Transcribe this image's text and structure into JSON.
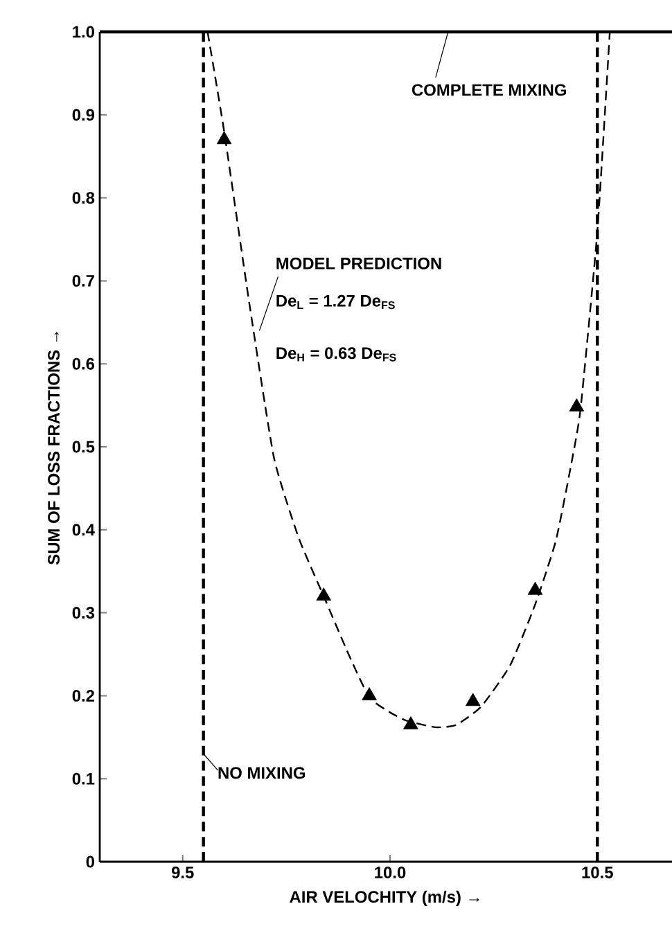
{
  "chart_data": {
    "type": "scatter",
    "xlabel": "AIR VELOCHITY (m/s) →",
    "ylabel": "SUM OF LOSS FRACTIONS →",
    "xlim": [
      9.3,
      10.68
    ],
    "ylim": [
      0,
      1.0
    ],
    "xticks": [
      9.5,
      {
        "value": 10,
        "label": "10.0"
      },
      10.5
    ],
    "yticks": [
      0,
      0.1,
      0.2,
      0.3,
      0.4,
      0.5,
      0.6,
      0.7,
      0.8,
      0.9,
      {
        "value": 1,
        "label": "1.0"
      }
    ],
    "grid": false,
    "series": [
      {
        "color": "#000000",
        "marker": "triangle",
        "x": [
          9.6,
          9.84,
          9.95,
          10.05,
          10.2,
          10.35,
          10.45
        ],
        "values": [
          0.87,
          0.32,
          0.2,
          0.165,
          0.193,
          0.327,
          0.548
        ]
      },
      {
        "type": "line",
        "color": "#000000",
        "line_style": "dashed",
        "marker": "none",
        "x": [
          9.56,
          9.6,
          9.66,
          9.72,
          9.78,
          9.84,
          9.9,
          9.95,
          10.0,
          10.04,
          10.11,
          10.16,
          10.22,
          10.29,
          10.35,
          10.4,
          10.44,
          10.46,
          10.5,
          10.53
        ],
        "values": [
          1.0,
          0.88,
          0.675,
          0.487,
          0.39,
          0.32,
          0.25,
          0.198,
          0.18,
          0.17,
          0.162,
          0.165,
          0.187,
          0.237,
          0.31,
          0.387,
          0.487,
          0.548,
          0.76,
          1.0
        ]
      }
    ],
    "ref_lines": [
      {
        "axis": "y",
        "value": 1.0,
        "label": "COMPLETE MIXING",
        "color": "#000000",
        "line_style": "solid"
      },
      {
        "axis": "x",
        "value": 9.55,
        "label": "NO MIXING",
        "color": "#000000",
        "line_style": "dashed"
      },
      {
        "axis": "x",
        "value": 10.5,
        "color": "#000000",
        "line_style": "dashed"
      }
    ],
    "annotations": [
      {
        "text": "MODEL PREDICTION",
        "x": 9.685,
        "y": 0.64
      },
      "De$_{L}$ = 1.27 De$_{FS}$",
      "De$_{H}$ = 0.63 De$_{FS}$"
    ]
  }
}
